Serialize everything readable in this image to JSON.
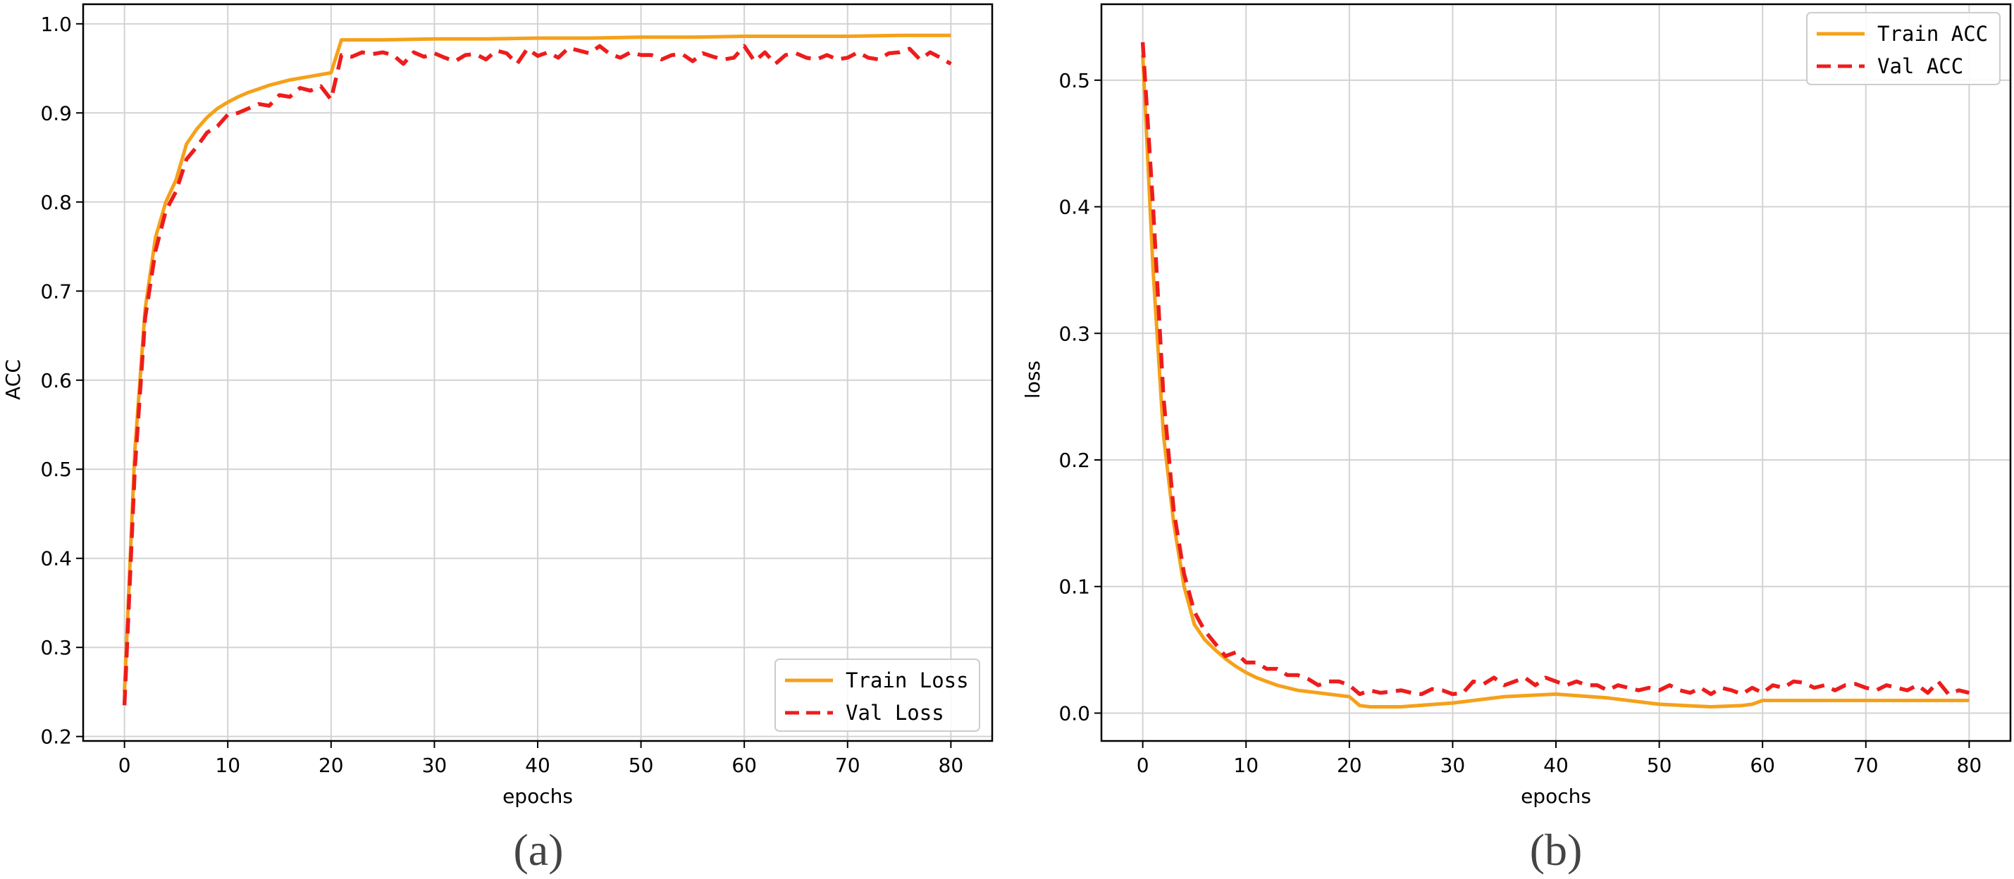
{
  "colors": {
    "train": "#F5A11A",
    "val": "#EE1C1C",
    "grid": "#D3D3D3",
    "axis": "#000000"
  },
  "chart_data": [
    {
      "type": "line",
      "panel_label": "(a)",
      "xlabel": "epochs",
      "ylabel": "ACC",
      "xlim": [
        -4,
        84
      ],
      "ylim": [
        0.195,
        1.022
      ],
      "xticks": [
        0,
        10,
        20,
        30,
        40,
        50,
        60,
        70,
        80
      ],
      "yticks": [
        0.2,
        0.3,
        0.4,
        0.5,
        0.6,
        0.7,
        0.8,
        0.9,
        1.0
      ],
      "ytick_labels": [
        "0.2",
        "0.3",
        "0.4",
        "0.5",
        "0.6",
        "0.7",
        "0.8",
        "0.9",
        "1.0"
      ],
      "grid": true,
      "legend_position": "lower-right",
      "series": [
        {
          "name": "Train Loss",
          "style": "solid",
          "x": [
            0,
            1,
            2,
            3,
            4,
            5,
            6,
            7,
            8,
            9,
            10,
            11,
            12,
            13,
            14,
            15,
            16,
            17,
            18,
            19,
            20,
            21,
            25,
            30,
            35,
            40,
            45,
            50,
            55,
            60,
            65,
            70,
            75,
            80
          ],
          "y": [
            0.25,
            0.52,
            0.68,
            0.76,
            0.8,
            0.825,
            0.865,
            0.882,
            0.895,
            0.905,
            0.912,
            0.918,
            0.923,
            0.927,
            0.931,
            0.934,
            0.937,
            0.939,
            0.941,
            0.943,
            0.945,
            0.982,
            0.982,
            0.983,
            0.983,
            0.984,
            0.984,
            0.985,
            0.985,
            0.986,
            0.986,
            0.986,
            0.987,
            0.987
          ]
        },
        {
          "name": "Val Loss",
          "style": "dashed",
          "x": [
            0,
            1,
            2,
            3,
            4,
            5,
            6,
            7,
            8,
            9,
            10,
            11,
            12,
            13,
            14,
            15,
            16,
            17,
            18,
            19,
            20,
            21,
            22,
            23,
            24,
            25,
            26,
            27,
            28,
            29,
            30,
            31,
            32,
            33,
            34,
            35,
            36,
            37,
            38,
            39,
            40,
            41,
            42,
            43,
            44,
            45,
            46,
            47,
            48,
            49,
            50,
            51,
            52,
            53,
            54,
            55,
            56,
            57,
            58,
            59,
            60,
            61,
            62,
            63,
            64,
            65,
            66,
            67,
            68,
            69,
            70,
            71,
            72,
            73,
            74,
            75,
            76,
            77,
            78,
            79,
            80
          ],
          "y": [
            0.235,
            0.5,
            0.67,
            0.745,
            0.79,
            0.812,
            0.848,
            0.862,
            0.878,
            0.885,
            0.898,
            0.9,
            0.905,
            0.91,
            0.908,
            0.92,
            0.918,
            0.928,
            0.925,
            0.93,
            0.915,
            0.965,
            0.963,
            0.968,
            0.966,
            0.968,
            0.965,
            0.955,
            0.968,
            0.963,
            0.967,
            0.962,
            0.958,
            0.965,
            0.966,
            0.96,
            0.97,
            0.967,
            0.955,
            0.972,
            0.964,
            0.968,
            0.962,
            0.973,
            0.97,
            0.967,
            0.975,
            0.966,
            0.962,
            0.968,
            0.965,
            0.965,
            0.96,
            0.965,
            0.966,
            0.958,
            0.967,
            0.963,
            0.96,
            0.962,
            0.975,
            0.958,
            0.968,
            0.955,
            0.965,
            0.967,
            0.962,
            0.96,
            0.965,
            0.96,
            0.962,
            0.968,
            0.962,
            0.96,
            0.967,
            0.968,
            0.972,
            0.96,
            0.968,
            0.962,
            0.955
          ]
        }
      ]
    },
    {
      "type": "line",
      "panel_label": "(b)",
      "xlabel": "epochs",
      "ylabel": "loss",
      "xlim": [
        -4,
        84
      ],
      "ylim": [
        -0.022,
        0.56
      ],
      "xticks": [
        0,
        10,
        20,
        30,
        40,
        50,
        60,
        70,
        80
      ],
      "yticks": [
        0.0,
        0.1,
        0.2,
        0.3,
        0.4,
        0.5
      ],
      "ytick_labels": [
        "0.0",
        "0.1",
        "0.2",
        "0.3",
        "0.4",
        "0.5"
      ],
      "grid": true,
      "legend_position": "upper-right",
      "series": [
        {
          "name": "Train ACC",
          "style": "solid",
          "x": [
            0,
            1,
            2,
            3,
            4,
            5,
            6,
            7,
            8,
            9,
            10,
            11,
            12,
            13,
            14,
            15,
            16,
            17,
            18,
            19,
            20,
            21,
            22,
            25,
            30,
            35,
            40,
            45,
            50,
            55,
            58,
            59,
            60,
            65,
            70,
            75,
            80
          ],
          "y": [
            0.52,
            0.35,
            0.22,
            0.15,
            0.1,
            0.07,
            0.058,
            0.05,
            0.043,
            0.037,
            0.032,
            0.028,
            0.025,
            0.022,
            0.02,
            0.018,
            0.017,
            0.016,
            0.015,
            0.014,
            0.013,
            0.006,
            0.005,
            0.005,
            0.008,
            0.013,
            0.015,
            0.012,
            0.007,
            0.005,
            0.006,
            0.007,
            0.01,
            0.01,
            0.01,
            0.01,
            0.01
          ]
        },
        {
          "name": "Val ACC",
          "style": "dashed",
          "x": [
            0,
            1,
            2,
            3,
            4,
            5,
            6,
            7,
            8,
            9,
            10,
            11,
            12,
            13,
            14,
            15,
            16,
            17,
            18,
            19,
            20,
            21,
            22,
            23,
            24,
            25,
            26,
            27,
            28,
            29,
            30,
            31,
            32,
            33,
            34,
            35,
            36,
            37,
            38,
            39,
            40,
            41,
            42,
            43,
            44,
            45,
            46,
            47,
            48,
            49,
            50,
            51,
            52,
            53,
            54,
            55,
            56,
            57,
            58,
            59,
            60,
            61,
            62,
            63,
            64,
            65,
            66,
            67,
            68,
            69,
            70,
            71,
            72,
            73,
            74,
            75,
            76,
            77,
            78,
            79,
            80
          ],
          "y": [
            0.53,
            0.4,
            0.25,
            0.16,
            0.11,
            0.08,
            0.065,
            0.055,
            0.045,
            0.048,
            0.04,
            0.04,
            0.035,
            0.035,
            0.03,
            0.03,
            0.027,
            0.022,
            0.025,
            0.025,
            0.022,
            0.015,
            0.018,
            0.016,
            0.017,
            0.018,
            0.016,
            0.015,
            0.019,
            0.018,
            0.015,
            0.016,
            0.025,
            0.023,
            0.028,
            0.022,
            0.025,
            0.028,
            0.022,
            0.028,
            0.025,
            0.022,
            0.025,
            0.022,
            0.022,
            0.018,
            0.022,
            0.02,
            0.018,
            0.02,
            0.018,
            0.022,
            0.018,
            0.016,
            0.02,
            0.015,
            0.02,
            0.018,
            0.015,
            0.02,
            0.016,
            0.022,
            0.02,
            0.025,
            0.024,
            0.02,
            0.022,
            0.018,
            0.022,
            0.023,
            0.02,
            0.018,
            0.022,
            0.02,
            0.018,
            0.022,
            0.016,
            0.025,
            0.015,
            0.018,
            0.016
          ]
        }
      ]
    }
  ]
}
